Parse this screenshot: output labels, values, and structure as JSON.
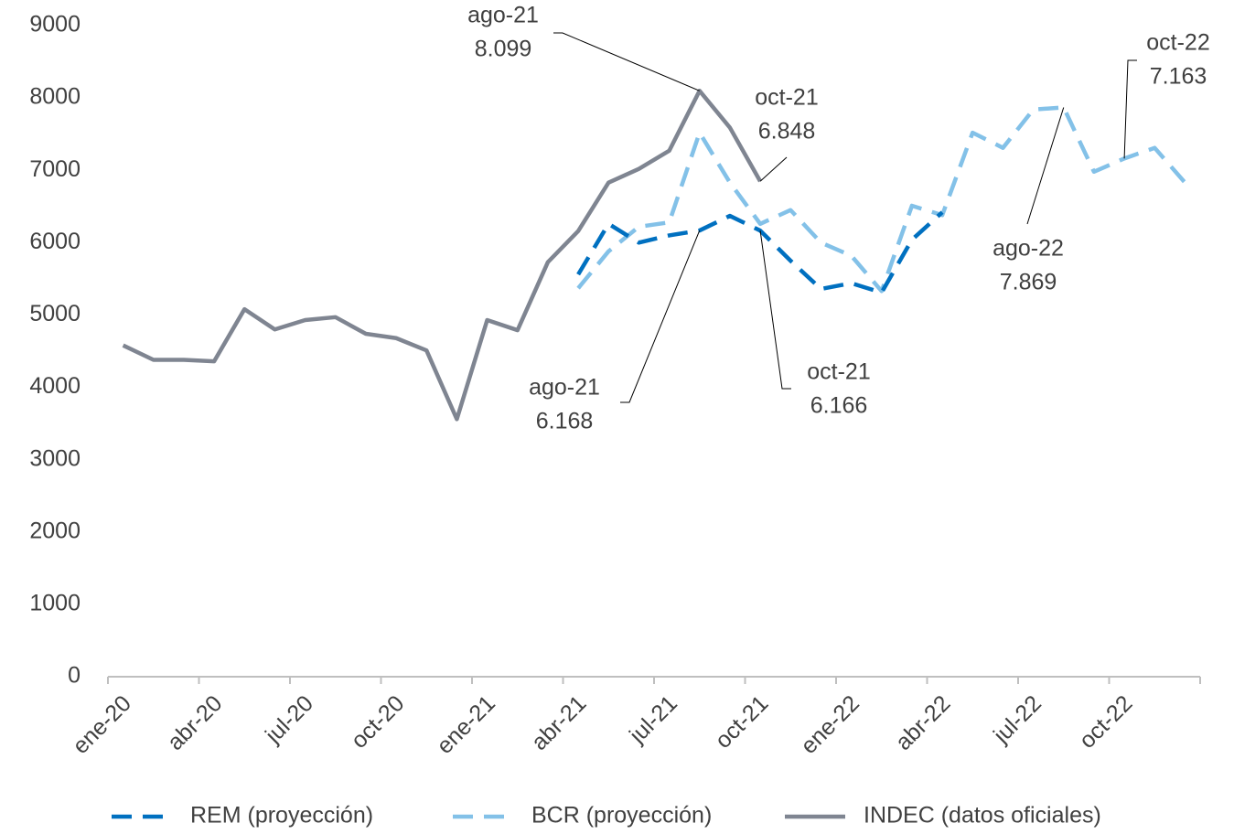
{
  "chart_data": {
    "type": "line",
    "categories": [
      "ene-20",
      null,
      null,
      "abr-20",
      null,
      null,
      "jul-20",
      null,
      null,
      "oct-20",
      null,
      null,
      "ene-21",
      null,
      null,
      "abr-21",
      null,
      null,
      "jul-21",
      null,
      null,
      "oct-21",
      null,
      null,
      "ene-22",
      null,
      null,
      "abr-22",
      null,
      null,
      "jul-22",
      null,
      null,
      "oct-22",
      null,
      null
    ],
    "series": [
      {
        "name": "REM (proyección)",
        "color": "#0070c0",
        "dash": true,
        "values": [
          null,
          null,
          null,
          null,
          null,
          null,
          null,
          null,
          null,
          null,
          null,
          null,
          null,
          null,
          null,
          5560,
          6260,
          6000,
          6100,
          6168,
          6370,
          6166,
          5750,
          5360,
          5440,
          5310,
          6040,
          6420,
          null,
          null,
          null,
          null,
          null,
          null,
          null,
          null
        ]
      },
      {
        "name": "BCR (proyección)",
        "color": "#83c1e8",
        "dash": true,
        "values": [
          null,
          null,
          null,
          null,
          null,
          null,
          null,
          null,
          null,
          null,
          null,
          null,
          null,
          null,
          null,
          5370,
          5880,
          6220,
          6280,
          7520,
          6830,
          6260,
          6450,
          6000,
          5820,
          5330,
          6510,
          6380,
          7520,
          7310,
          7840,
          7869,
          6980,
          7163,
          7310,
          6830
        ]
      },
      {
        "name": "INDEC (datos oficiales)",
        "color": "#7f8591",
        "dash": false,
        "values": [
          4580,
          4380,
          4380,
          4360,
          5080,
          4800,
          4930,
          4970,
          4740,
          4680,
          4510,
          3560,
          4930,
          4790,
          5730,
          6160,
          6830,
          7020,
          7270,
          8099,
          7590,
          6848,
          null,
          null,
          null,
          null,
          null,
          null,
          null,
          null,
          null,
          null,
          null,
          null,
          null,
          null
        ]
      }
    ],
    "annotations": [
      {
        "lines": [
          "ago-21",
          "8.099"
        ]
      },
      {
        "lines": [
          "oct-21",
          "6.848"
        ]
      },
      {
        "lines": [
          "ago-21",
          "6.168"
        ]
      },
      {
        "lines": [
          "oct-21",
          "6.166"
        ]
      },
      {
        "lines": [
          "ago-22",
          "7.869"
        ]
      },
      {
        "lines": [
          "oct-22",
          "7.163"
        ]
      }
    ],
    "ylim": [
      0,
      9000
    ],
    "yticks": [
      0,
      1000,
      2000,
      3000,
      4000,
      5000,
      6000,
      7000,
      8000,
      9000
    ],
    "grid": false,
    "legend": "bottom"
  }
}
